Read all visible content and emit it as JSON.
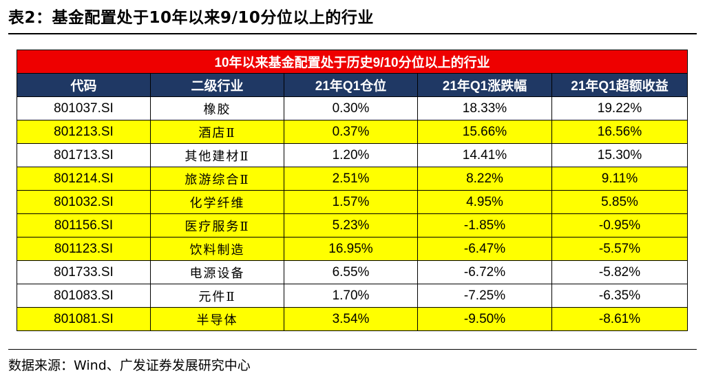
{
  "caption": "表2：基金配置处于10年以来9/10分位以上的行业",
  "table": {
    "title": "10年以来基金配置处于历史9/10分位以上的行业",
    "headers": [
      "代码",
      "二级行业",
      "21年Q1仓位",
      "21年Q1涨跌幅",
      "21年Q1超额收益"
    ],
    "rows": [
      {
        "code": "801037.SI",
        "industry": "橡胶",
        "position": "0.30%",
        "change": "18.33%",
        "excess": "19.22%",
        "highlight": false
      },
      {
        "code": "801213.SI",
        "industry": "酒店Ⅱ",
        "position": "0.37%",
        "change": "15.66%",
        "excess": "16.56%",
        "highlight": true
      },
      {
        "code": "801713.SI",
        "industry": "其他建材Ⅱ",
        "position": "1.20%",
        "change": "14.41%",
        "excess": "15.30%",
        "highlight": false
      },
      {
        "code": "801214.SI",
        "industry": "旅游综合Ⅱ",
        "position": "2.51%",
        "change": "8.22%",
        "excess": "9.11%",
        "highlight": true
      },
      {
        "code": "801032.SI",
        "industry": "化学纤维",
        "position": "1.57%",
        "change": "4.95%",
        "excess": "5.85%",
        "highlight": true
      },
      {
        "code": "801156.SI",
        "industry": "医疗服务Ⅱ",
        "position": "5.23%",
        "change": "-1.85%",
        "excess": "-0.95%",
        "highlight": true
      },
      {
        "code": "801123.SI",
        "industry": "饮料制造",
        "position": "16.95%",
        "change": "-6.47%",
        "excess": "-5.57%",
        "highlight": true
      },
      {
        "code": "801733.SI",
        "industry": "电源设备",
        "position": "6.55%",
        "change": "-6.72%",
        "excess": "-5.82%",
        "highlight": false
      },
      {
        "code": "801083.SI",
        "industry": "元件Ⅱ",
        "position": "1.70%",
        "change": "-7.25%",
        "excess": "-6.35%",
        "highlight": false
      },
      {
        "code": "801081.SI",
        "industry": "半导体",
        "position": "3.54%",
        "change": "-9.50%",
        "excess": "-8.61%",
        "highlight": true
      }
    ]
  },
  "source": "数据来源：Wind、广发证券发展研究中心",
  "colors": {
    "title_bg": "#ee0000",
    "header_bg": "#1f3864",
    "highlight": "#ffff00"
  }
}
